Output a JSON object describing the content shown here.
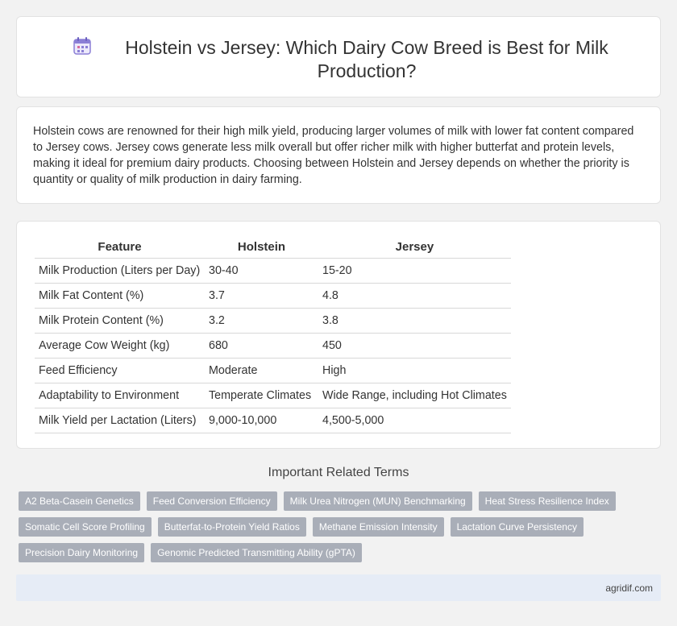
{
  "header": {
    "title": "Holstein vs Jersey: Which Dairy Cow Breed is Best for Milk Production?",
    "icon": "calendar-icon"
  },
  "intro": {
    "text": "Holstein cows are renowned for their high milk yield, producing larger volumes of milk with lower fat content compared to Jersey cows. Jersey cows generate less milk overall but offer richer milk with higher butterfat and protein levels, making it ideal for premium dairy products. Choosing between Holstein and Jersey depends on whether the priority is quantity or quality of milk production in dairy farming."
  },
  "table": {
    "headers": [
      "Feature",
      "Holstein",
      "Jersey"
    ],
    "rows": [
      [
        "Milk Production (Liters per Day)",
        "30-40",
        "15-20"
      ],
      [
        "Milk Fat Content (%)",
        "3.7",
        "4.8"
      ],
      [
        "Milk Protein Content (%)",
        "3.2",
        "3.8"
      ],
      [
        "Average Cow Weight (kg)",
        "680",
        "450"
      ],
      [
        "Feed Efficiency",
        "Moderate",
        "High"
      ],
      [
        "Adaptability to Environment",
        "Temperate Climates",
        "Wide Range, including Hot Climates"
      ],
      [
        "Milk Yield per Lactation (Liters)",
        "9,000-10,000",
        "4,500-5,000"
      ]
    ]
  },
  "related": {
    "heading": "Important Related Terms",
    "tags": [
      [
        "A2 Beta-Casein Genetics",
        "Feed Conversion Efficiency",
        "Milk Urea Nitrogen (MUN) Benchmarking",
        "Heat Stress Resilience Index"
      ],
      [
        "Somatic Cell Score Profiling",
        "Butterfat-to-Protein Yield Ratios",
        "Methane Emission Intensity",
        "Lactation Curve Persistency"
      ],
      [
        "Precision Dairy Monitoring",
        "Genomic Predicted Transmitting Ability (gPTA)"
      ]
    ]
  },
  "footer": {
    "site": "agridif.com"
  },
  "colors": {
    "tag_bg": "#a9aeb8",
    "footer_bg": "#e6ecf6",
    "icon_accent": "#8b7fd6"
  }
}
